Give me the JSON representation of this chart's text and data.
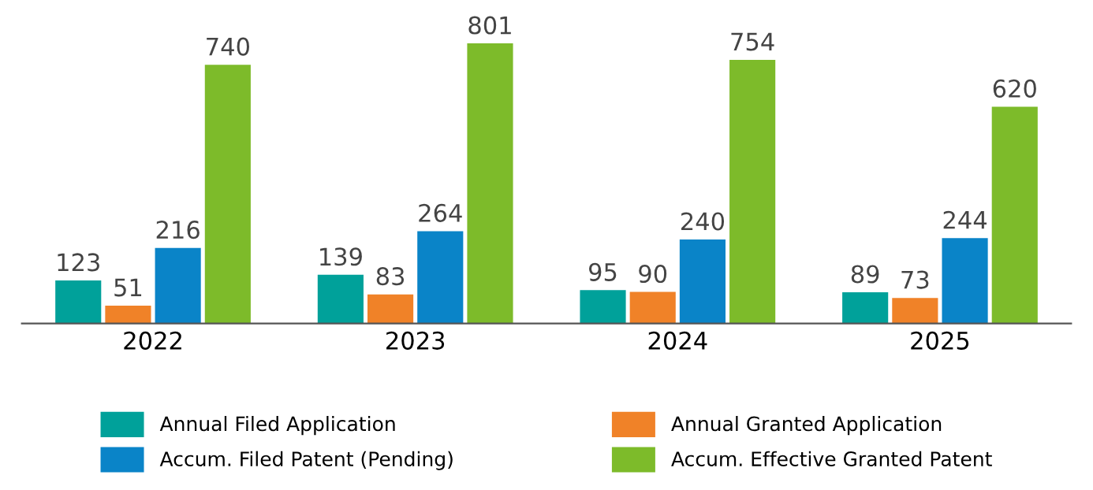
{
  "chart_data": {
    "type": "bar",
    "categories": [
      "2022",
      "2023",
      "2024",
      "2025"
    ],
    "series": [
      {
        "name": "Annual Filed Application",
        "color": "#00a19a",
        "values": [
          123,
          139,
          95,
          89
        ]
      },
      {
        "name": "Annual Granted Application",
        "color": "#f08228",
        "values": [
          51,
          83,
          90,
          73
        ]
      },
      {
        "name": "Accum. Filed Patent (Pending)",
        "color": "#0a84c8",
        "values": [
          216,
          264,
          240,
          244
        ]
      },
      {
        "name": "Accum. Effective Granted Patent",
        "color": "#7dbb2a",
        "values": [
          740,
          801,
          754,
          620
        ]
      }
    ],
    "data_labels": true,
    "legend": "bottom",
    "grid": false
  }
}
